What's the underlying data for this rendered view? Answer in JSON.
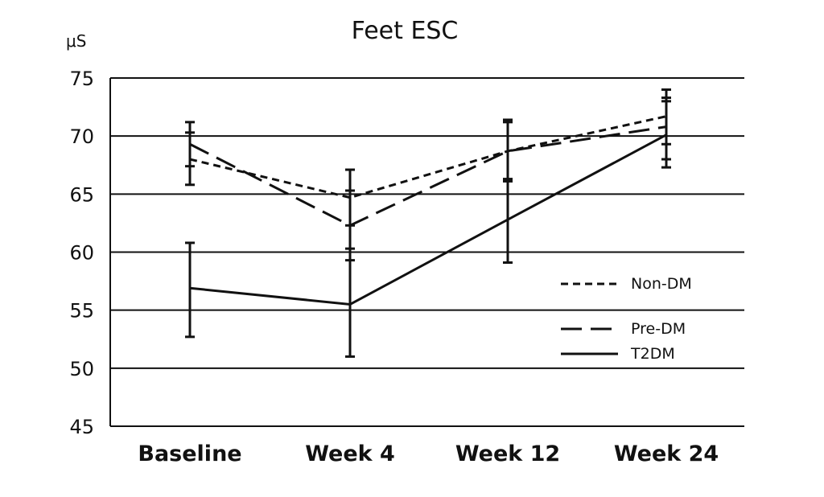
{
  "chart_data": {
    "type": "line",
    "title": "Feet ESC",
    "ylabel": "μS",
    "xlabel": "",
    "categories": [
      "Baseline",
      "Week 4",
      "Week 12",
      "Week 24"
    ],
    "ylim": [
      45,
      75
    ],
    "yticks": [
      45,
      50,
      55,
      60,
      65,
      70,
      75
    ],
    "grid": true,
    "legend_position": "right",
    "series": [
      {
        "name": "Non-DM",
        "style": "dotted",
        "values": [
          68.0,
          64.7,
          68.7,
          71.7
        ],
        "err_low": [
          65.8,
          62.3,
          66.3,
          69.3
        ],
        "err_high": [
          70.3,
          67.1,
          71.2,
          74.0
        ]
      },
      {
        "name": "Pre-DM",
        "style": "dashed",
        "values": [
          69.3,
          62.3,
          68.7,
          70.8
        ],
        "err_low": [
          67.4,
          59.3,
          66.1,
          67.3
        ],
        "err_high": [
          71.2,
          65.3,
          71.4,
          73.0
        ]
      },
      {
        "name": "T2DM",
        "style": "solid",
        "values": [
          56.9,
          55.5,
          62.8,
          70.1
        ],
        "err_low": [
          52.7,
          51.0,
          59.1,
          68.0
        ],
        "err_high": [
          60.8,
          60.3,
          66.2,
          73.3
        ]
      }
    ]
  },
  "colors": {
    "line": "#111111",
    "background": "#ffffff"
  }
}
